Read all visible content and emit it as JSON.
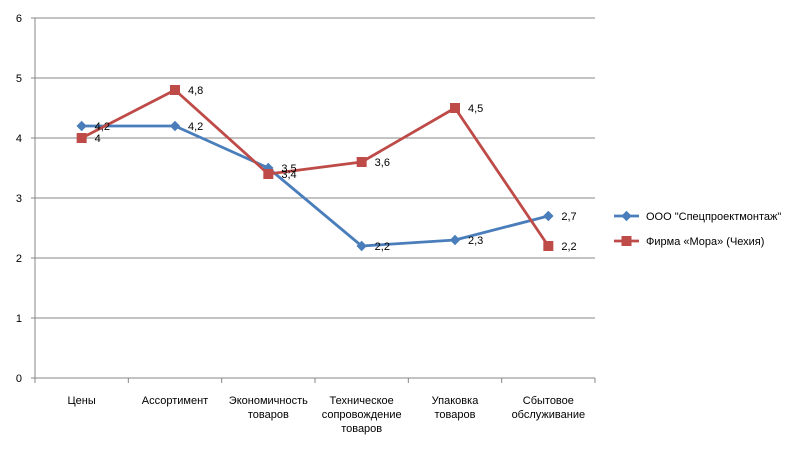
{
  "chart_data": {
    "type": "line",
    "categories": [
      [
        "Цены"
      ],
      [
        "Ассортимент"
      ],
      [
        "Экономичность",
        "товаров"
      ],
      [
        "Техническое",
        "сопровождение",
        "товаров"
      ],
      [
        "Упаковка",
        "товаров"
      ],
      [
        "Сбытовое",
        "обслуживание"
      ]
    ],
    "ylim": [
      0,
      6
    ],
    "yticks": [
      "0",
      "1",
      "2",
      "3",
      "4",
      "5",
      "6"
    ],
    "grid": true,
    "legend_position": "right",
    "series": [
      {
        "name": "ООО \"Спецпроектмонтаж\"",
        "color": "#4a7ebb",
        "marker": "diamond",
        "values": [
          4.2,
          4.2,
          3.5,
          2.2,
          2.3,
          2.7
        ],
        "labels": [
          "4,2",
          "4,2",
          "3,5",
          "2,2",
          "2,3",
          "2,7"
        ]
      },
      {
        "name": "Фирма «Мора» (Чехия)",
        "color": "#be4b48",
        "marker": "square",
        "values": [
          4,
          4.8,
          3.4,
          3.6,
          4.5,
          2.2
        ],
        "labels": [
          "4",
          "4,8",
          "3,4",
          "3,6",
          "4,5",
          "2,2"
        ]
      }
    ]
  }
}
